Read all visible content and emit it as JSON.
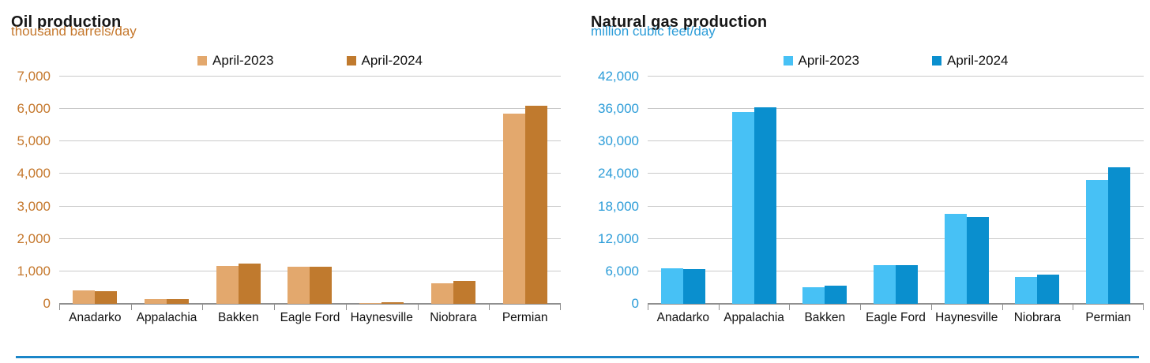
{
  "page": {
    "bottom_rule_color": "#1b86c8",
    "gridline_color": "#c9c9c9",
    "axis_line_color": "#8f8f8f"
  },
  "chart_data": [
    {
      "type": "bar",
      "title": "Oil production",
      "subtitle": "thousand barrels/day",
      "accent_color": "#c5782d",
      "axis_label_color": "#c5782d",
      "legend_position": "top",
      "grid": true,
      "ylim": [
        0,
        7000
      ],
      "yticks": [
        {
          "v": 0,
          "label": "0"
        },
        {
          "v": 1000,
          "label": "1,000"
        },
        {
          "v": 2000,
          "label": "2,000"
        },
        {
          "v": 3000,
          "label": "3,000"
        },
        {
          "v": 4000,
          "label": "4,000"
        },
        {
          "v": 5000,
          "label": "5,000"
        },
        {
          "v": 6000,
          "label": "6,000"
        },
        {
          "v": 7000,
          "label": "7,000"
        }
      ],
      "categories": [
        "Anadarko",
        "Appalachia",
        "Bakken",
        "Eagle Ford",
        "Haynesville",
        "Niobrara",
        "Permian"
      ],
      "series": [
        {
          "name": "April-2023",
          "color": "#e3a86d",
          "values": [
            420,
            140,
            1170,
            1150,
            30,
            640,
            5850
          ]
        },
        {
          "name": "April-2024",
          "color": "#c07a2e",
          "values": [
            390,
            150,
            1230,
            1140,
            40,
            700,
            6110
          ]
        }
      ]
    },
    {
      "type": "bar",
      "title": "Natural gas production",
      "subtitle": "million cubic feet/day",
      "accent_color": "#2b9cd8",
      "axis_label_color": "#2b9cd8",
      "legend_position": "top",
      "grid": true,
      "ylim": [
        0,
        42000
      ],
      "yticks": [
        {
          "v": 0,
          "label": "0"
        },
        {
          "v": 6000,
          "label": "6,000"
        },
        {
          "v": 12000,
          "label": "12,000"
        },
        {
          "v": 18000,
          "label": "18,000"
        },
        {
          "v": 24000,
          "label": "24,000"
        },
        {
          "v": 30000,
          "label": "30,000"
        },
        {
          "v": 36000,
          "label": "36,000"
        },
        {
          "v": 42000,
          "label": "42,000"
        }
      ],
      "categories": [
        "Anadarko",
        "Appalachia",
        "Bakken",
        "Eagle Ford",
        "Haynesville",
        "Niobrara",
        "Permian"
      ],
      "series": [
        {
          "name": "April-2023",
          "color": "#47c1f5",
          "values": [
            6600,
            35500,
            3100,
            7200,
            16600,
            5000,
            22900
          ]
        },
        {
          "name": "April-2024",
          "color": "#0a8fce",
          "values": [
            6400,
            36300,
            3400,
            7200,
            16100,
            5400,
            25200
          ]
        }
      ]
    }
  ]
}
